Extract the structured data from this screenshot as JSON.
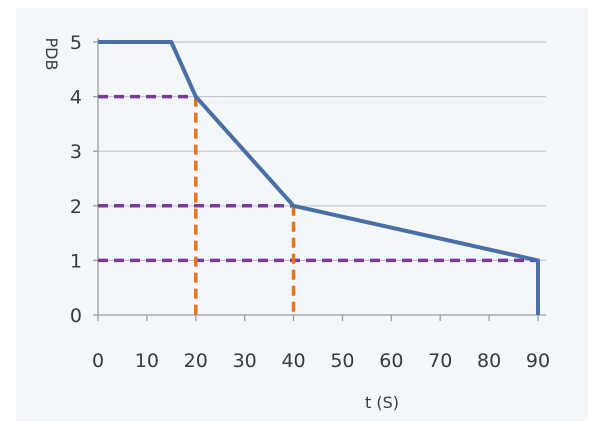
{
  "chart_data": {
    "type": "line",
    "title": "",
    "xlabel": "t (S)",
    "ylabel": "PDB",
    "xlim": [
      0,
      90
    ],
    "ylim": [
      0,
      5
    ],
    "xticks": [
      0,
      10,
      20,
      30,
      40,
      50,
      60,
      70,
      80,
      90
    ],
    "yticks": [
      0,
      1,
      2,
      3,
      4,
      5
    ],
    "grid": "horizontal",
    "legend": "none",
    "series": [
      {
        "color": "#4a6fa5",
        "x": [
          0,
          15,
          20,
          40,
          90,
          90
        ],
        "y": [
          5,
          5,
          4,
          2,
          1,
          0
        ]
      }
    ],
    "reference_lines": [
      {
        "orientation": "horizontal",
        "color": "#7a3a9a",
        "from": [
          0,
          4
        ],
        "to": [
          20,
          4
        ]
      },
      {
        "orientation": "horizontal",
        "color": "#7a3a9a",
        "from": [
          0,
          2
        ],
        "to": [
          40,
          2
        ]
      },
      {
        "orientation": "horizontal",
        "color": "#7a3a9a",
        "from": [
          0,
          1
        ],
        "to": [
          90,
          1
        ]
      },
      {
        "orientation": "vertical",
        "color": "#e8731e",
        "from": [
          20,
          4
        ],
        "to": [
          20,
          0
        ]
      },
      {
        "orientation": "vertical",
        "color": "#e8731e",
        "from": [
          40,
          2
        ],
        "to": [
          40,
          0
        ]
      }
    ]
  }
}
